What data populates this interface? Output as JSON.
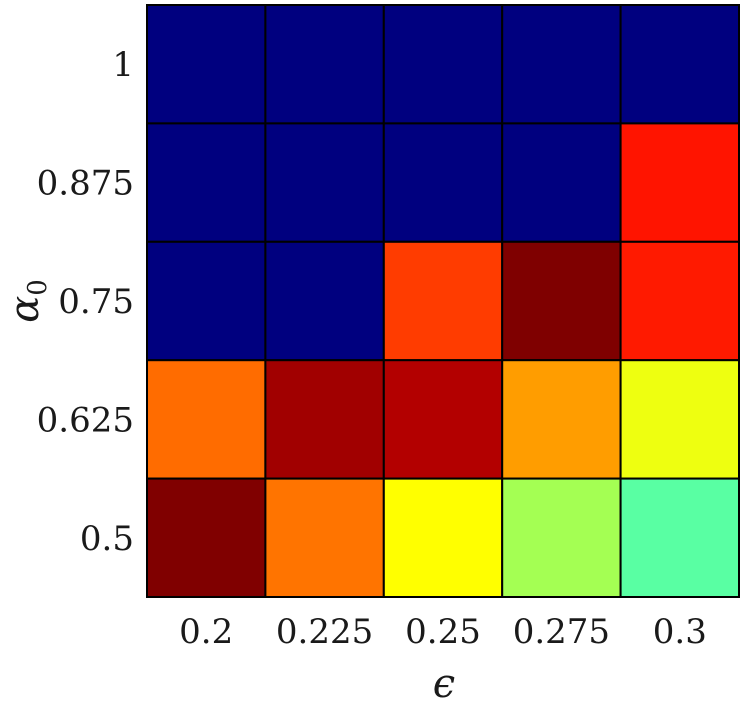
{
  "chart_data": {
    "type": "heatmap",
    "title": "",
    "xlabel": "ϵ",
    "ylabel": "α",
    "ylabel_subscript": "0",
    "x_categories": [
      "0.2",
      "0.225",
      "0.25",
      "0.275",
      "0.3"
    ],
    "y_categories": [
      "1",
      "0.875",
      "0.75",
      "0.625",
      "0.5"
    ],
    "colormap": "jet",
    "colorbar": false,
    "grid": true,
    "cells": [
      [
        "#00007f",
        "#00007f",
        "#00007f",
        "#00007f",
        "#00007f"
      ],
      [
        "#00007f",
        "#00007f",
        "#00007f",
        "#00007f",
        "#ff1400"
      ],
      [
        "#00007f",
        "#00007f",
        "#ff3c00",
        "#7f0000",
        "#ff1a00"
      ],
      [
        "#ff6c00",
        "#a10000",
        "#b30000",
        "#ff9d00",
        "#eeff10"
      ],
      [
        "#800000",
        "#ff7400",
        "#ffff00",
        "#a4ff53",
        "#59ffa3"
      ]
    ]
  }
}
